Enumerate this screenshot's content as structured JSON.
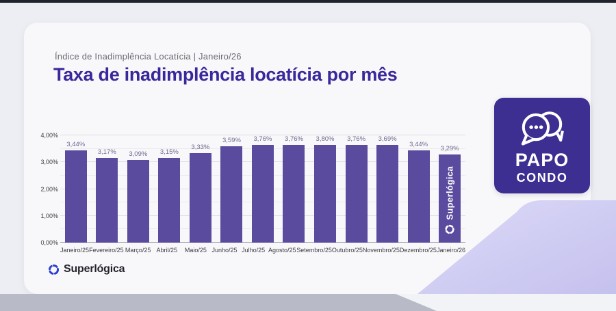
{
  "page": {
    "background_color": "#edeef3",
    "top_strip_color": "#20222c",
    "bottom_strip_color": "#b8bbc7",
    "lavender_color": "#cbc7f1",
    "card_color": "#f8f8fa"
  },
  "header": {
    "subtitle": "Índice de Inadimplência Locatícia | Janeiro/26",
    "title": "Taxa de inadimplência locatícia por mês",
    "title_color": "#38289b"
  },
  "chart_data": {
    "type": "bar",
    "title": "Taxa de inadimplência locatícia por mês",
    "categories": [
      "Janeiro/25",
      "Fevereiro/25",
      "Março/25",
      "Abril/25",
      "Maio/25",
      "Junho/25",
      "Julho/25",
      "Agosto/25",
      "Setembro/25",
      "Outubro/25",
      "Novembro/25",
      "Dezembro/25",
      "Janeiro/26"
    ],
    "values": [
      3.44,
      3.17,
      3.09,
      3.15,
      3.33,
      3.59,
      3.76,
      3.76,
      3.8,
      3.76,
      3.69,
      3.44,
      3.29
    ],
    "value_labels": [
      "3,44%",
      "3,17%",
      "3,09%",
      "3,15%",
      "3,33%",
      "3,59%",
      "3,76%",
      "3,76%",
      "3,80%",
      "3,76%",
      "3,69%",
      "3,44%",
      "3,29%"
    ],
    "xlabel": "",
    "ylabel": "",
    "ylim": [
      0,
      4
    ],
    "yticks": [
      {
        "label": "0,00%",
        "value": 0
      },
      {
        "label": "1,00%",
        "value": 1
      },
      {
        "label": "2,00%",
        "value": 2
      },
      {
        "label": "3,00%",
        "value": 3
      },
      {
        "label": "4,00%",
        "value": 4
      }
    ],
    "minor_gridlines": [
      0.5,
      1.5,
      2.5,
      3.5
    ],
    "grid": true,
    "legend": false,
    "bar_color": "#5b4b9e",
    "watermark": "Superlógica"
  },
  "footer": {
    "brand": "Superlógica"
  },
  "badge": {
    "line1": "PAPO",
    "line2": "CONDO",
    "icon": "chat-bubbles-icon",
    "background": "#3d2e91"
  }
}
